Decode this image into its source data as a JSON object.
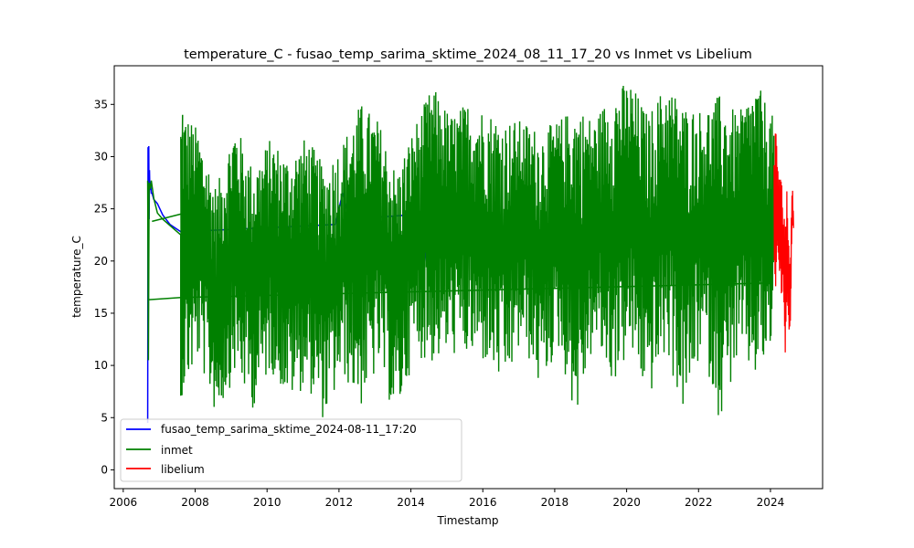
{
  "chart_data": {
    "type": "line",
    "title": "temperature_C - fusao_temp_sarima_sktime_2024_08_11_17_20 vs Inmet vs Libelium",
    "xlabel": "Timestamp",
    "ylabel": "temperature_C",
    "xlim": [
      2005.75,
      2025.45
    ],
    "ylim": [
      -1.8,
      38.7
    ],
    "x_ticks": [
      2006,
      2008,
      2010,
      2012,
      2014,
      2016,
      2018,
      2020,
      2022,
      2024
    ],
    "y_ticks": [
      0,
      5,
      10,
      15,
      20,
      25,
      30,
      35
    ],
    "grid": false,
    "legend_position": "lower-left",
    "series": [
      {
        "name": "fusao_temp_sarima_sktime_2024-08-11_17:20",
        "color": "#0000ff",
        "x": [
          2006.68,
          2006.69,
          2006.7,
          2006.71,
          2006.72,
          2006.73,
          2006.74,
          2006.76,
          2006.78,
          2006.8,
          2006.85,
          2006.95,
          2007.1,
          2007.3,
          2007.6,
          2011.9,
          2012.1,
          2012.3,
          2014.3,
          2014.45,
          2014.55
        ],
        "y": [
          4.5,
          30.9,
          22.0,
          31.0,
          24.0,
          28.7,
          26.8,
          27.5,
          26.5,
          26.5,
          25.9,
          25.5,
          24.4,
          23.5,
          22.8,
          23.5,
          26.5,
          24.0,
          24.5,
          19.5,
          21.5
        ]
      },
      {
        "name": "inmet",
        "color": "#008000",
        "x": [
          2006.68,
          2006.7,
          2006.72,
          2006.75,
          2006.78,
          2006.85,
          2006.95,
          2007.1,
          2007.6,
          2007.6,
          2007.6,
          2007.65
        ],
        "y": [
          27.7,
          10.5,
          27.5,
          26.9,
          27.7,
          26.0,
          24.6,
          24.0,
          22.5,
          16.3,
          7.1,
          34.0
        ],
        "band_start": 2007.6,
        "band_end": 2024.1,
        "extremes": [
          {
            "x": 2007.7,
            "max": 34.5,
            "min": 7.1
          },
          {
            "x": 2008.1,
            "max": 32.5,
            "min": 10.5
          },
          {
            "x": 2008.6,
            "max": 27.0,
            "min": 4.8
          },
          {
            "x": 2009.1,
            "max": 33.5,
            "min": 9.0
          },
          {
            "x": 2009.6,
            "max": 29.0,
            "min": 5.8
          },
          {
            "x": 2010.1,
            "max": 31.8,
            "min": 9.5
          },
          {
            "x": 2010.6,
            "max": 30.0,
            "min": 6.5
          },
          {
            "x": 2011.1,
            "max": 32.0,
            "min": 8.0
          },
          {
            "x": 2011.6,
            "max": 29.0,
            "min": 4.5
          },
          {
            "x": 2012.1,
            "max": 31.5,
            "min": 9.0
          },
          {
            "x": 2012.6,
            "max": 35.2,
            "min": 5.8
          },
          {
            "x": 2013.1,
            "max": 33.5,
            "min": 9.5
          },
          {
            "x": 2013.6,
            "max": 28.5,
            "min": 4.5
          },
          {
            "x": 2014.1,
            "max": 33.0,
            "min": 11.0
          },
          {
            "x": 2014.6,
            "max": 36.8,
            "min": 10.0
          },
          {
            "x": 2015.1,
            "max": 34.0,
            "min": 11.0
          },
          {
            "x": 2015.6,
            "max": 35.3,
            "min": 10.5
          },
          {
            "x": 2016.1,
            "max": 34.5,
            "min": 10.0
          },
          {
            "x": 2016.6,
            "max": 33.5,
            "min": 7.5
          },
          {
            "x": 2017.1,
            "max": 33.5,
            "min": 12.0
          },
          {
            "x": 2017.6,
            "max": 32.5,
            "min": 7.5
          },
          {
            "x": 2018.1,
            "max": 33.5,
            "min": 11.5
          },
          {
            "x": 2018.6,
            "max": 35.0,
            "min": 4.7
          },
          {
            "x": 2019.1,
            "max": 33.5,
            "min": 12.0
          },
          {
            "x": 2019.6,
            "max": 36.5,
            "min": 8.0
          },
          {
            "x": 2020.1,
            "max": 37.3,
            "min": 11.0
          },
          {
            "x": 2020.6,
            "max": 34.0,
            "min": 6.5
          },
          {
            "x": 2021.1,
            "max": 37.2,
            "min": 11.0
          },
          {
            "x": 2021.6,
            "max": 35.0,
            "min": 5.0
          },
          {
            "x": 2022.1,
            "max": 34.5,
            "min": 11.5
          },
          {
            "x": 2022.6,
            "max": 36.0,
            "min": 4.5
          },
          {
            "x": 2023.1,
            "max": 34.0,
            "min": 10.5
          },
          {
            "x": 2023.6,
            "max": 37.3,
            "min": 8.5
          },
          {
            "x": 2024.05,
            "max": 34.0,
            "min": 11.0
          }
        ],
        "connector_lines": [
          {
            "x": [
              2006.72,
              2007.6
            ],
            "y": [
              16.3,
              16.5
            ]
          },
          {
            "x": [
              2007.6,
              2024.05
            ],
            "y": [
              16.5,
              17.9
            ]
          },
          {
            "x": [
              2006.8,
              2007.6
            ],
            "y": [
              23.8,
              24.5
            ]
          }
        ]
      },
      {
        "name": "libelium",
        "color": "#ff0000",
        "band_start": 2024.1,
        "band_end": 2024.5,
        "x": [
          2024.1,
          2024.15,
          2024.2,
          2024.25,
          2024.3,
          2024.35,
          2024.4,
          2024.45,
          2024.5,
          2024.55,
          2024.6,
          2024.65
        ],
        "y_max": [
          31.0,
          33.5,
          31.5,
          29.0,
          28.0,
          29.0,
          24.5,
          27.5,
          24.5,
          22.0,
          29.0,
          23.5
        ],
        "y_min": [
          18.0,
          17.5,
          20.0,
          17.0,
          16.0,
          15.0,
          8.8,
          12.5,
          14.0,
          12.3,
          21.0,
          23.5
        ]
      }
    ]
  }
}
